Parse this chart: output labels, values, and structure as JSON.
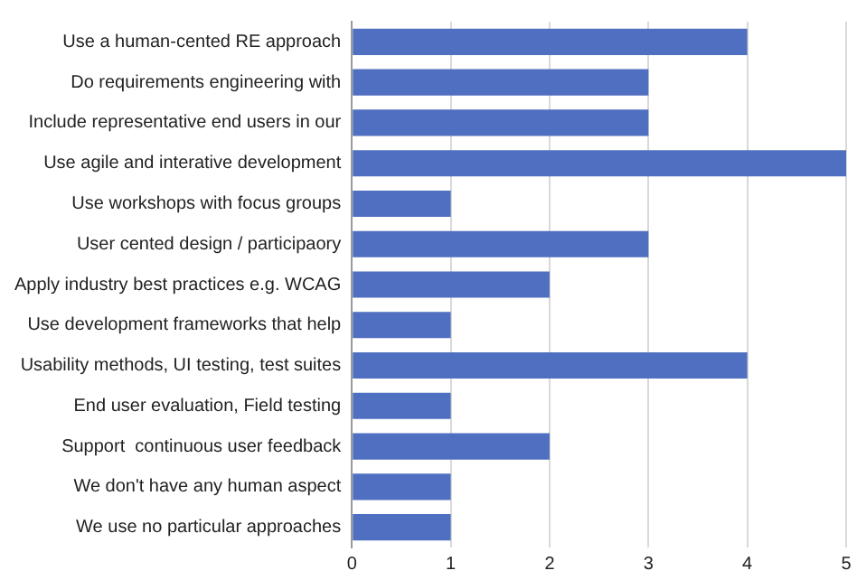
{
  "chart_data": {
    "type": "bar",
    "orientation": "horizontal",
    "categories": [
      "Use a human-cented RE approach",
      "Do requirements engineering with",
      "Include representative end users in our",
      "Use agile and interative development",
      "Use workshops with focus groups",
      "User cented design / participaory",
      "Apply industry best practices e.g. WCAG",
      "Use development frameworks that help",
      "Usability methods, UI testing, test suites",
      "End user evaluation, Field testing",
      "Support  continuous user feedback",
      "We don't have any human aspect",
      "We use no particular approaches"
    ],
    "values": [
      4,
      3,
      3,
      5,
      1,
      3,
      2,
      1,
      4,
      1,
      2,
      1,
      1
    ],
    "color": "#4f6fc0",
    "xlim": [
      0,
      5
    ],
    "xticks": [
      0,
      1,
      2,
      3,
      4,
      5
    ],
    "grid": "x",
    "legend": false
  }
}
